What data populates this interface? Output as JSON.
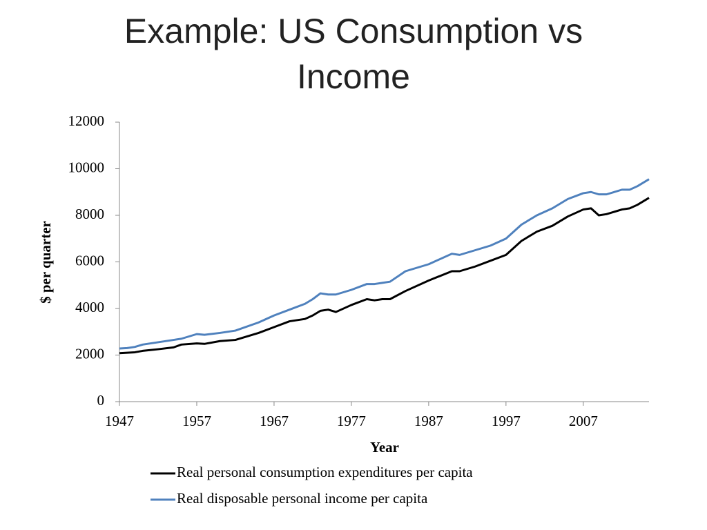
{
  "chart_data": {
    "type": "line",
    "title": "Example: US Consumption vs Income",
    "x_label": "Year",
    "y_label": "$ per quarter",
    "x": [
      1947,
      1948,
      1949,
      1950,
      1952,
      1954,
      1955,
      1957,
      1958,
      1960,
      1962,
      1965,
      1967,
      1969,
      1971,
      1972,
      1973,
      1974,
      1975,
      1977,
      1979,
      1980,
      1981,
      1982,
      1984,
      1987,
      1990,
      1991,
      1993,
      1995,
      1997,
      1999,
      2001,
      2003,
      2005,
      2007,
      2008,
      2009,
      2010,
      2012,
      2013,
      2014,
      2015.5
    ],
    "series": [
      {
        "name": "Real personal consumption expenditures per capita",
        "color": "#000000",
        "values": [
          2080,
          2100,
          2120,
          2180,
          2250,
          2330,
          2450,
          2500,
          2480,
          2600,
          2650,
          2950,
          3200,
          3450,
          3550,
          3700,
          3900,
          3950,
          3850,
          4150,
          4400,
          4350,
          4400,
          4400,
          4750,
          5200,
          5600,
          5600,
          5800,
          6050,
          6300,
          6900,
          7300,
          7550,
          7950,
          8250,
          8300,
          8000,
          8050,
          8250,
          8300,
          8450,
          8750
        ]
      },
      {
        "name": "Real disposable personal income per capita",
        "color": "#4f81bd",
        "values": [
          2280,
          2300,
          2350,
          2450,
          2550,
          2650,
          2700,
          2900,
          2870,
          2950,
          3050,
          3400,
          3700,
          3950,
          4200,
          4400,
          4650,
          4600,
          4600,
          4800,
          5050,
          5050,
          5100,
          5150,
          5600,
          5900,
          6350,
          6300,
          6500,
          6700,
          7000,
          7600,
          8000,
          8300,
          8700,
          8950,
          9000,
          8900,
          8900,
          9100,
          9100,
          9250,
          9550
        ]
      }
    ],
    "xlim": [
      1947,
      2015.5
    ],
    "xticks": [
      1947,
      1957,
      1967,
      1977,
      1987,
      1997,
      2007
    ],
    "ylim": [
      0,
      12000
    ],
    "yticks": [
      0,
      2000,
      4000,
      6000,
      8000,
      10000,
      12000
    ],
    "grid": false,
    "legend": "bottom"
  }
}
